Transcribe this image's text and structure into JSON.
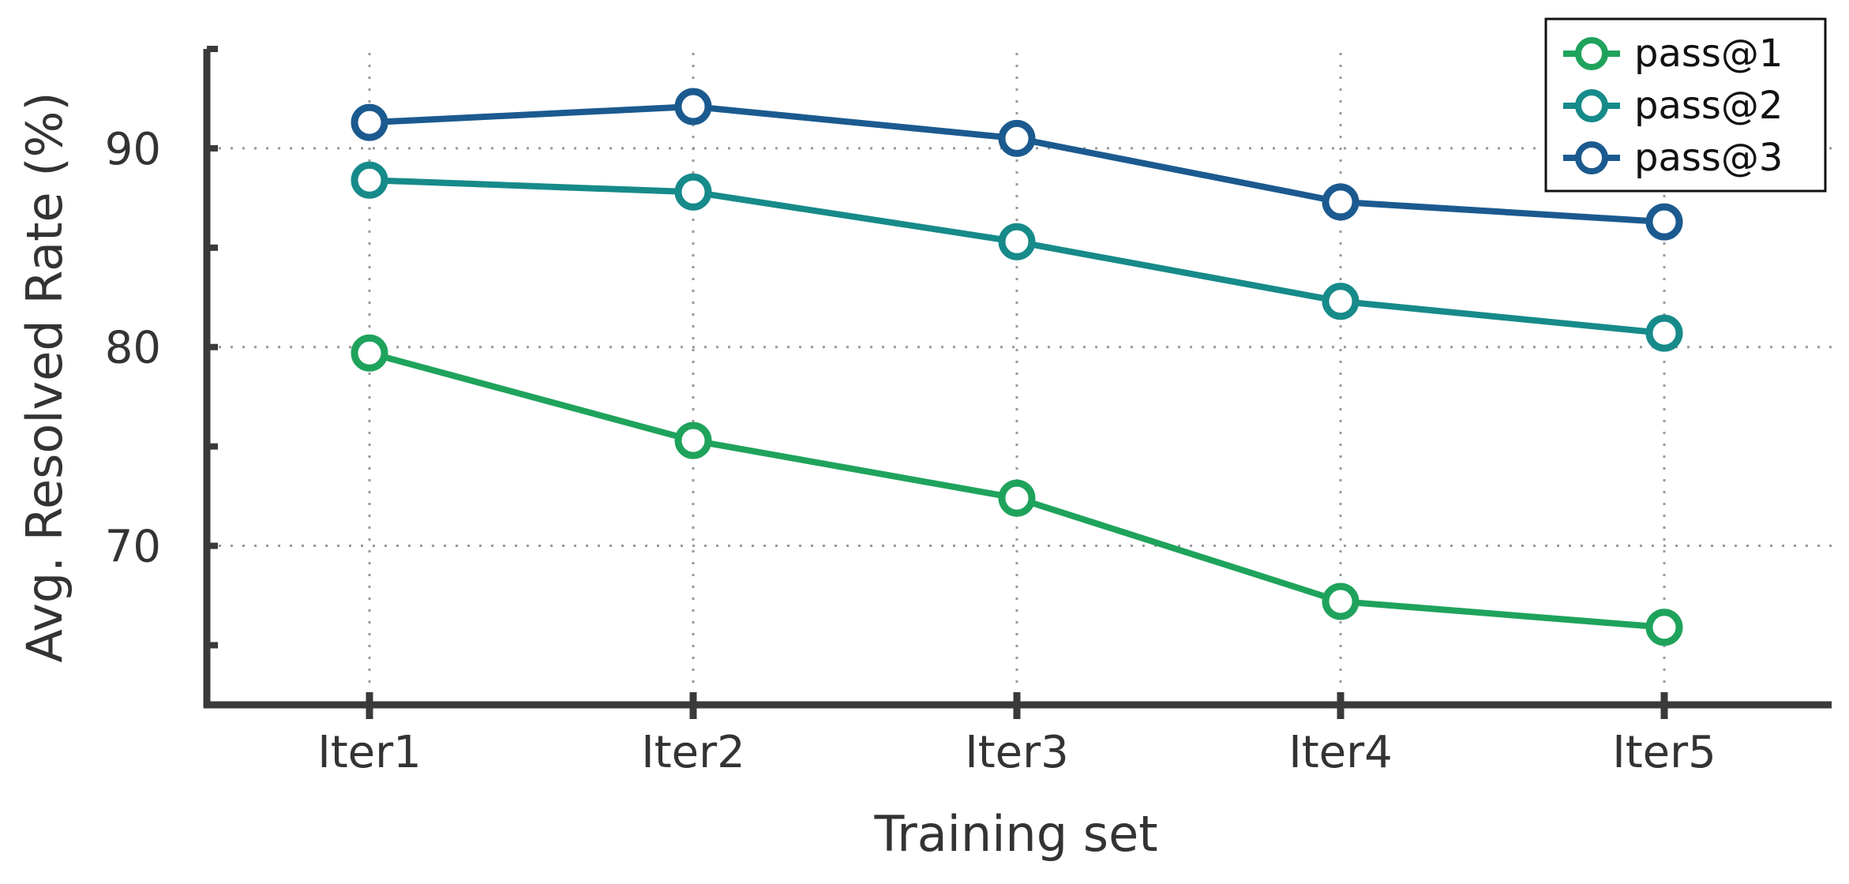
{
  "chart_data": {
    "type": "line",
    "categories": [
      "Iter1",
      "Iter2",
      "Iter3",
      "Iter4",
      "Iter5"
    ],
    "series": [
      {
        "name": "pass@1",
        "values": [
          79.7,
          75.3,
          72.4,
          67.2,
          65.9
        ],
        "color": "#1fa35c"
      },
      {
        "name": "pass@2",
        "values": [
          88.4,
          87.8,
          85.3,
          82.3,
          80.7
        ],
        "color": "#178a8a"
      },
      {
        "name": "pass@3",
        "values": [
          91.3,
          92.1,
          90.5,
          87.3,
          86.3
        ],
        "color": "#1b5a8f"
      }
    ],
    "xlabel": "Training set",
    "ylabel": "Avg. Resolved Rate (%)",
    "ylim": [
      62,
      95
    ],
    "yticks": [
      70,
      80,
      90
    ],
    "grid": true,
    "legend_position": "top-right",
    "axis_color": "#3a3a3a",
    "grid_color": "#999999"
  }
}
